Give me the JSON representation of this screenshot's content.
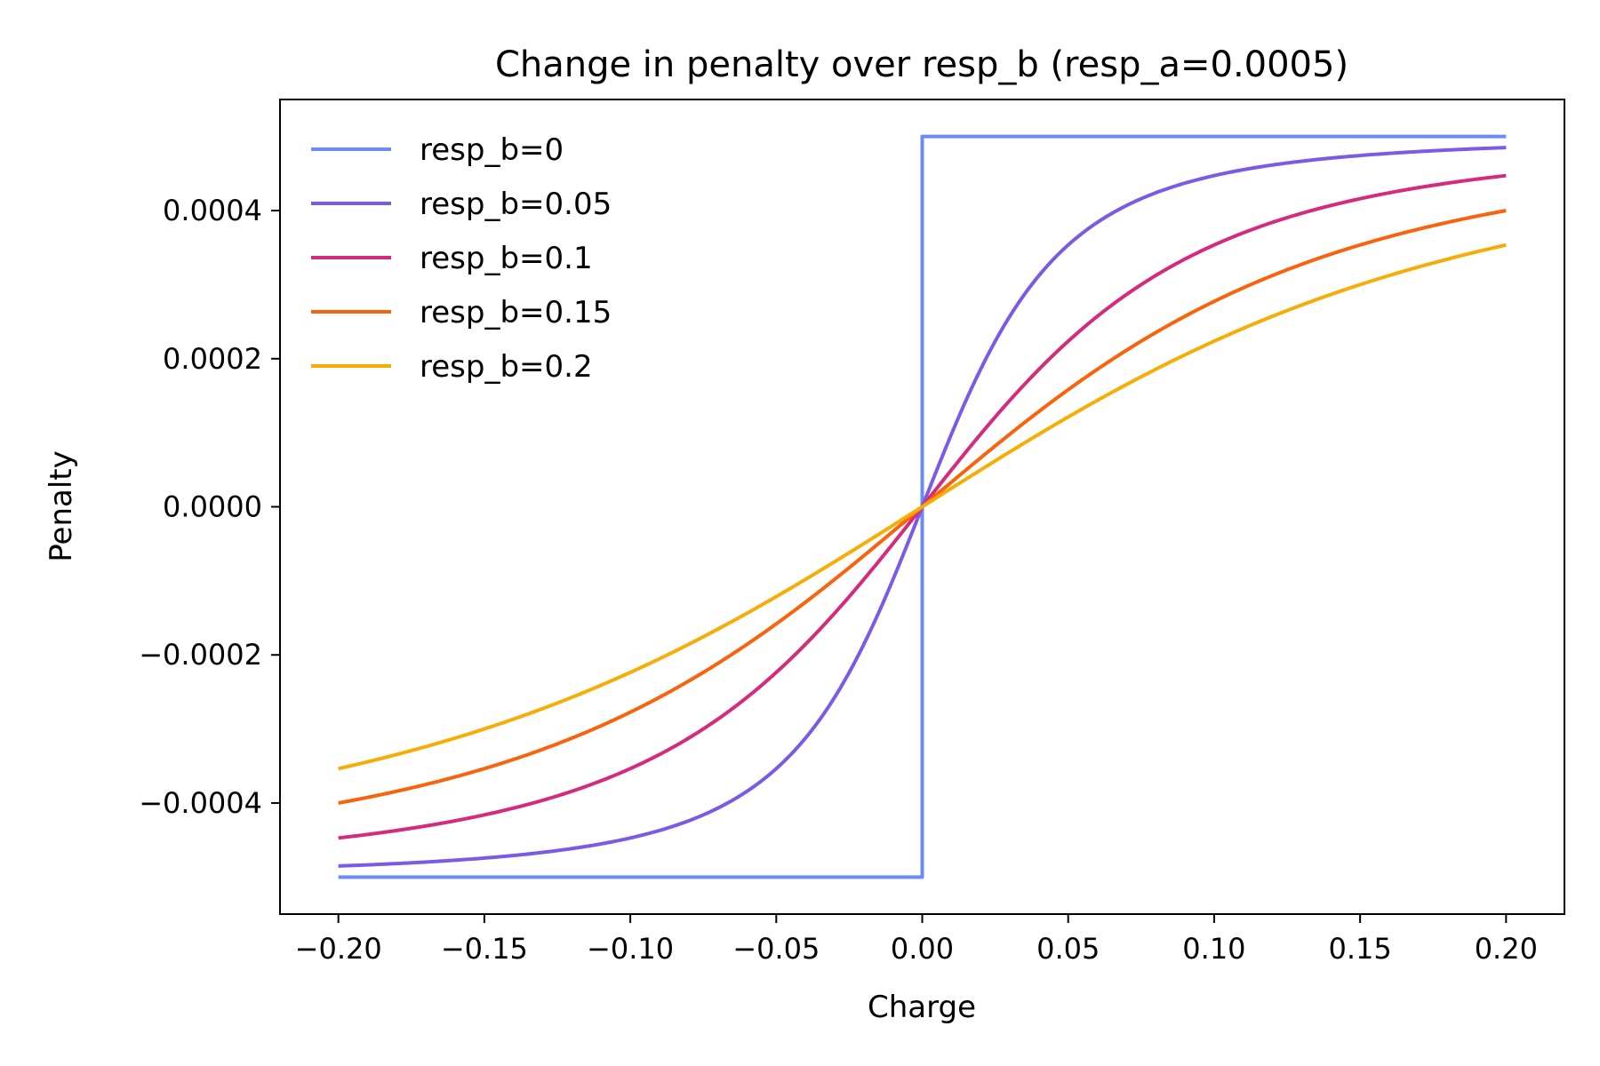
{
  "chart_data": {
    "type": "line",
    "title": "Change in penalty over resp_b (resp_a=0.0005)",
    "xlabel": "Charge",
    "ylabel": "Penalty",
    "xlim": [
      -0.22,
      0.22
    ],
    "ylim": [
      -0.00055,
      0.00055
    ],
    "xticks": [
      -0.2,
      -0.15,
      -0.1,
      -0.05,
      0.0,
      0.05,
      0.1,
      0.15,
      0.2
    ],
    "xtick_labels": [
      "−0.20",
      "−0.15",
      "−0.10",
      "−0.05",
      "0.00",
      "0.05",
      "0.10",
      "0.15",
      "0.20"
    ],
    "yticks": [
      -0.0004,
      -0.0002,
      0.0,
      0.0002,
      0.0004
    ],
    "ytick_labels": [
      "−0.0004",
      "−0.0002",
      "0.0000",
      "0.0002",
      "0.0004"
    ],
    "grid": false,
    "legend_position": "top-left",
    "resp_a": 0.0005,
    "x_range": [
      -0.2,
      0.2
    ],
    "series": [
      {
        "name": "resp_b=0",
        "resp_b": 0,
        "color": "#6b8cf6"
      },
      {
        "name": "resp_b=0.05",
        "resp_b": 0.05,
        "color": "#7b5be6"
      },
      {
        "name": "resp_b=0.1",
        "resp_b": 0.1,
        "color": "#d62a7c"
      },
      {
        "name": "resp_b=0.15",
        "resp_b": 0.15,
        "color": "#fa620c"
      },
      {
        "name": "resp_b=0.2",
        "resp_b": 0.2,
        "color": "#f8ad06"
      }
    ]
  }
}
